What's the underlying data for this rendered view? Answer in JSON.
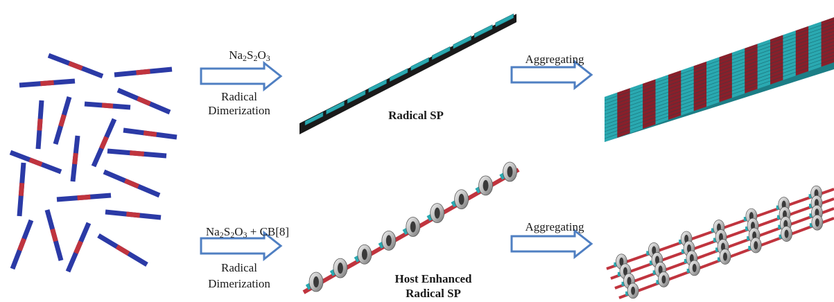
{
  "colors": {
    "rod_blue": "#2b3aa6",
    "rod_red": "#c0343e",
    "arrow_stroke": "#4f7fc2",
    "arrow_fill": "#ffffff",
    "tape_cyan": "#2aa9b1",
    "tape_dark": "#1a1a1a",
    "ring_gray": "#bdbdbd"
  },
  "top_row": {
    "arrow1": {
      "reagent": {
        "a": "Na",
        "s1": "2",
        "b": "S",
        "s2": "2",
        "c": "O",
        "s3": "3"
      },
      "line1": "Radical",
      "line2": "Dimerization"
    },
    "product_label": "Radical SP",
    "arrow2_label": "Aggregating"
  },
  "bottom_row": {
    "arrow1": {
      "reagent": {
        "a": "Na",
        "s1": "2",
        "b": "S",
        "s2": "2",
        "c": "O",
        "s3": "3",
        "suffix": " + CB[8]"
      },
      "line1": "Radical",
      "line2": "Dimerization"
    },
    "product_label_line1": "Host Enhanced",
    "product_label_line2": "Radical SP",
    "arrow2_label": "Aggregating"
  }
}
